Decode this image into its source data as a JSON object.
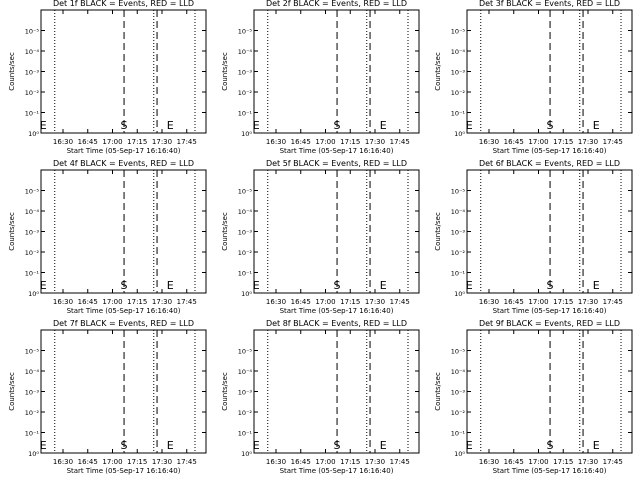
{
  "chart_data": [
    {
      "type": "line",
      "title": "Det 1f BLACK = Events, RED = LLD",
      "xlabel": "Start Time (05-Sep-17 16:16:40)",
      "ylabel": "Counts/sec",
      "x_ticks": [
        "16:30",
        "16:45",
        "17:00",
        "17:15",
        "17:30",
        "17:45"
      ],
      "y_ticks": [
        "10⁰",
        "10⁻¹",
        "10⁻²",
        "10⁻³",
        "10⁻⁴",
        "10⁻⁵"
      ],
      "xlim": [
        "16:16:40",
        "17:56:40"
      ],
      "y_scale": "log",
      "dotted_lines": [
        "16:25",
        "17:25",
        "17:50"
      ],
      "dashed_lines": [
        "17:07",
        "17:27"
      ],
      "markers": [
        {
          "label": "E",
          "x": "16:18"
        },
        {
          "label": "S",
          "x": "17:07"
        },
        {
          "label": "E",
          "x": "17:35"
        }
      ],
      "series": []
    },
    {
      "type": "line",
      "title": "Det 2f BLACK = Events, RED = LLD",
      "xlabel": "Start Time (05-Sep-17 16:16:40)",
      "ylabel": "Counts/sec",
      "x_ticks": [
        "16:30",
        "16:45",
        "17:00",
        "17:15",
        "17:30",
        "17:45"
      ],
      "y_ticks": [
        "10⁰",
        "10⁻¹",
        "10⁻²",
        "10⁻³",
        "10⁻⁴",
        "10⁻⁵"
      ],
      "xlim": [
        "16:16:40",
        "17:56:40"
      ],
      "y_scale": "log",
      "dotted_lines": [
        "16:25",
        "17:25",
        "17:50"
      ],
      "dashed_lines": [
        "17:07",
        "17:27"
      ],
      "markers": [
        {
          "label": "E",
          "x": "16:18"
        },
        {
          "label": "S",
          "x": "17:07"
        },
        {
          "label": "E",
          "x": "17:35"
        }
      ],
      "series": []
    },
    {
      "type": "line",
      "title": "Det 3f BLACK = Events, RED = LLD",
      "xlabel": "Start Time (05-Sep-17 16:16:40)",
      "ylabel": "Counts/sec",
      "x_ticks": [
        "16:30",
        "16:45",
        "17:00",
        "17:15",
        "17:30",
        "17:45"
      ],
      "y_ticks": [
        "10⁰",
        "10⁻¹",
        "10⁻²",
        "10⁻³",
        "10⁻⁴",
        "10⁻⁵"
      ],
      "xlim": [
        "16:16:40",
        "17:56:40"
      ],
      "y_scale": "log",
      "dotted_lines": [
        "16:25",
        "17:25",
        "17:50"
      ],
      "dashed_lines": [
        "17:07",
        "17:27"
      ],
      "markers": [
        {
          "label": "E",
          "x": "16:18"
        },
        {
          "label": "S",
          "x": "17:07"
        },
        {
          "label": "E",
          "x": "17:35"
        }
      ],
      "series": []
    },
    {
      "type": "line",
      "title": "Det 4f BLACK = Events, RED = LLD",
      "xlabel": "Start Time (05-Sep-17 16:16:40)",
      "ylabel": "Counts/sec",
      "x_ticks": [
        "16:30",
        "16:45",
        "17:00",
        "17:15",
        "17:30",
        "17:45"
      ],
      "y_ticks": [
        "10⁰",
        "10⁻¹",
        "10⁻²",
        "10⁻³",
        "10⁻⁴",
        "10⁻⁵"
      ],
      "xlim": [
        "16:16:40",
        "17:56:40"
      ],
      "y_scale": "log",
      "dotted_lines": [
        "16:25",
        "17:25",
        "17:50"
      ],
      "dashed_lines": [
        "17:07",
        "17:27"
      ],
      "markers": [
        {
          "label": "E",
          "x": "16:18"
        },
        {
          "label": "S",
          "x": "17:07"
        },
        {
          "label": "E",
          "x": "17:35"
        }
      ],
      "series": []
    },
    {
      "type": "line",
      "title": "Det 5f BLACK = Events, RED = LLD",
      "xlabel": "Start Time (05-Sep-17 16:16:40)",
      "ylabel": "Counts/sec",
      "x_ticks": [
        "16:30",
        "16:45",
        "17:00",
        "17:15",
        "17:30",
        "17:45"
      ],
      "y_ticks": [
        "10⁰",
        "10⁻¹",
        "10⁻²",
        "10⁻³",
        "10⁻⁴",
        "10⁻⁵"
      ],
      "xlim": [
        "16:16:40",
        "17:56:40"
      ],
      "y_scale": "log",
      "dotted_lines": [
        "16:25",
        "17:25",
        "17:50"
      ],
      "dashed_lines": [
        "17:07",
        "17:27"
      ],
      "markers": [
        {
          "label": "E",
          "x": "16:18"
        },
        {
          "label": "S",
          "x": "17:07"
        },
        {
          "label": "E",
          "x": "17:35"
        }
      ],
      "series": []
    },
    {
      "type": "line",
      "title": "Det 6f BLACK = Events, RED = LLD",
      "xlabel": "Start Time (05-Sep-17 16:16:40)",
      "ylabel": "Counts/sec",
      "x_ticks": [
        "16:30",
        "16:45",
        "17:00",
        "17:15",
        "17:30",
        "17:45"
      ],
      "y_ticks": [
        "10⁰",
        "10⁻¹",
        "10⁻²",
        "10⁻³",
        "10⁻⁴",
        "10⁻⁵"
      ],
      "xlim": [
        "16:16:40",
        "17:56:40"
      ],
      "y_scale": "log",
      "dotted_lines": [
        "16:25",
        "17:25",
        "17:50"
      ],
      "dashed_lines": [
        "17:07",
        "17:27"
      ],
      "markers": [
        {
          "label": "E",
          "x": "16:18"
        },
        {
          "label": "S",
          "x": "17:07"
        },
        {
          "label": "E",
          "x": "17:35"
        }
      ],
      "series": []
    },
    {
      "type": "line",
      "title": "Det 7f BLACK = Events, RED = LLD",
      "xlabel": "Start Time (05-Sep-17 16:16:40)",
      "ylabel": "Counts/sec",
      "x_ticks": [
        "16:30",
        "16:45",
        "17:00",
        "17:15",
        "17:30",
        "17:45"
      ],
      "y_ticks": [
        "10⁰",
        "10⁻¹",
        "10⁻²",
        "10⁻³",
        "10⁻⁴",
        "10⁻⁵"
      ],
      "xlim": [
        "16:16:40",
        "17:56:40"
      ],
      "y_scale": "log",
      "dotted_lines": [
        "16:25",
        "17:25",
        "17:50"
      ],
      "dashed_lines": [
        "17:07",
        "17:27"
      ],
      "markers": [
        {
          "label": "E",
          "x": "16:18"
        },
        {
          "label": "S",
          "x": "17:07"
        },
        {
          "label": "E",
          "x": "17:35"
        }
      ],
      "series": []
    },
    {
      "type": "line",
      "title": "Det 8f BLACK = Events, RED = LLD",
      "xlabel": "Start Time (05-Sep-17 16:16:40)",
      "ylabel": "Counts/sec",
      "x_ticks": [
        "16:30",
        "16:45",
        "17:00",
        "17:15",
        "17:30",
        "17:45"
      ],
      "y_ticks": [
        "10⁰",
        "10⁻¹",
        "10⁻²",
        "10⁻³",
        "10⁻⁴",
        "10⁻⁵"
      ],
      "xlim": [
        "16:16:40",
        "17:56:40"
      ],
      "y_scale": "log",
      "dotted_lines": [
        "16:25",
        "17:25",
        "17:50"
      ],
      "dashed_lines": [
        "17:07",
        "17:27"
      ],
      "markers": [
        {
          "label": "E",
          "x": "16:18"
        },
        {
          "label": "S",
          "x": "17:07"
        },
        {
          "label": "E",
          "x": "17:35"
        }
      ],
      "series": []
    },
    {
      "type": "line",
      "title": "Det 9f BLACK = Events, RED = LLD",
      "xlabel": "Start Time (05-Sep-17 16:16:40)",
      "ylabel": "Counts/sec",
      "x_ticks": [
        "16:30",
        "16:45",
        "17:00",
        "17:15",
        "17:30",
        "17:45"
      ],
      "y_ticks": [
        "10⁰",
        "10⁻¹",
        "10⁻²",
        "10⁻³",
        "10⁻⁴",
        "10⁻⁵"
      ],
      "xlim": [
        "16:16:40",
        "17:56:40"
      ],
      "y_scale": "log",
      "dotted_lines": [
        "16:25",
        "17:25",
        "17:50"
      ],
      "dashed_lines": [
        "17:07",
        "17:27"
      ],
      "markers": [
        {
          "label": "E",
          "x": "16:18"
        },
        {
          "label": "S",
          "x": "17:07"
        },
        {
          "label": "E",
          "x": "17:35"
        }
      ],
      "series": []
    }
  ]
}
